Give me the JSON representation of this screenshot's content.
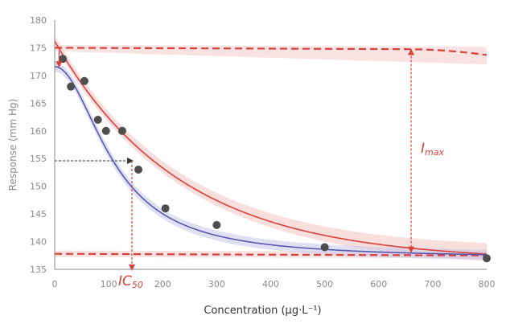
{
  "chart_data": {
    "type": "scatter",
    "title": "",
    "xlabel": "Concentration (µg·L⁻¹)",
    "ylabel": "Response (mm Hg)",
    "xlim": [
      0,
      800
    ],
    "ylim": [
      135,
      180
    ],
    "x_ticks": [
      0,
      100,
      200,
      300,
      400,
      500,
      600,
      700,
      800
    ],
    "y_ticks": [
      135,
      140,
      145,
      150,
      155,
      160,
      165,
      170,
      175,
      180
    ],
    "grid": false,
    "points": [
      {
        "x": 15,
        "y": 173
      },
      {
        "x": 30,
        "y": 168
      },
      {
        "x": 55,
        "y": 169
      },
      {
        "x": 80,
        "y": 162
      },
      {
        "x": 95,
        "y": 160
      },
      {
        "x": 125,
        "y": 160
      },
      {
        "x": 155,
        "y": 153
      },
      {
        "x": 205,
        "y": 146
      },
      {
        "x": 300,
        "y": 143
      },
      {
        "x": 500,
        "y": 139
      },
      {
        "x": 800,
        "y": 137
      }
    ],
    "fits": {
      "blue": {
        "top": 171.6,
        "bottom": 137,
        "ic50": 110,
        "hill": 2
      },
      "red": {
        "a": 39.7,
        "k": 0.0043,
        "c": 136.5
      }
    },
    "reference_lines": {
      "upper": 175,
      "lower": 137.8,
      "ic50_x": 143,
      "ic50_y": 154.6,
      "imax_x": 660
    },
    "annotations": {
      "ic50_label": "IC",
      "ic50_sub": "50",
      "imax_label": "I",
      "imax_sub": "max"
    },
    "colors": {
      "points": "#4e4e4e",
      "blue_fit": "#5858b0",
      "blue_band": "#c7c4ea",
      "red_fit": "#d9413a",
      "red_band": "#f3c8c5",
      "reference": "#d9413a",
      "axis": "#8a8a8a"
    }
  }
}
